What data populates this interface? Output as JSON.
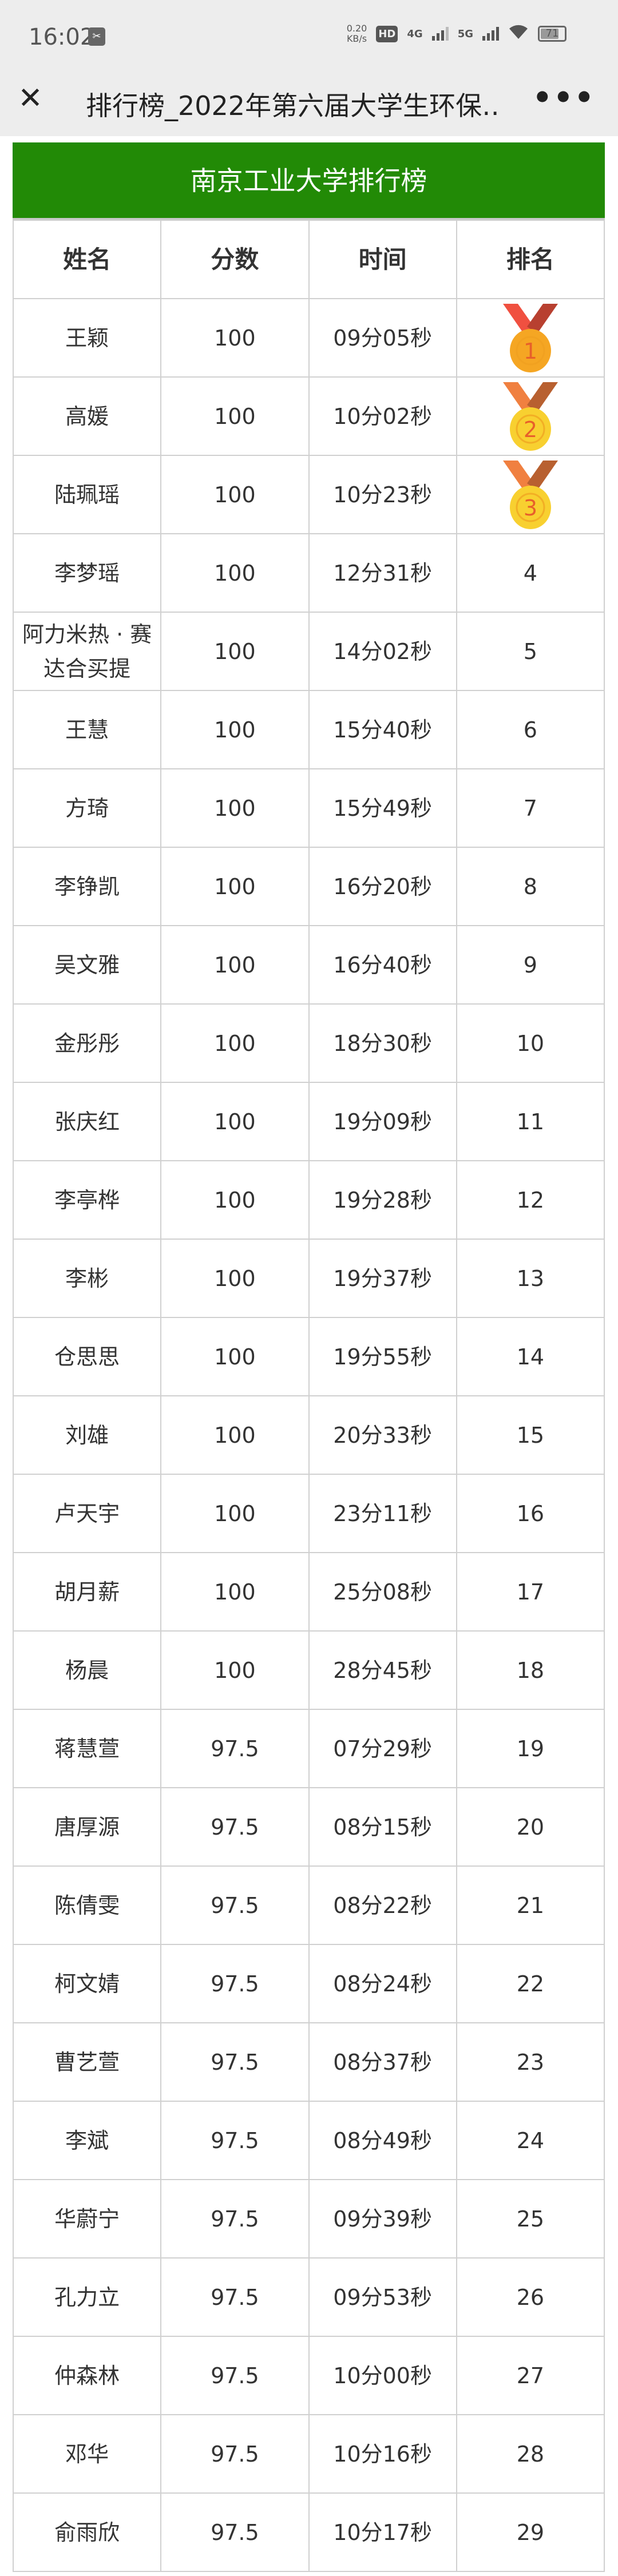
{
  "status_bar": {
    "time": "16:02",
    "speed_value": "0.20",
    "speed_unit": "KB/s",
    "hd_label": "HD",
    "sim1": "4G",
    "sim2": "5G",
    "battery": "71",
    "battery_percent": 71
  },
  "header": {
    "close_icon": "close-icon",
    "title": "排行榜_2022年第六届大学生环保…",
    "more_icon": "more-icon"
  },
  "board": {
    "title": "南京工业大学排行榜",
    "accent_color": "#228a06",
    "columns": [
      "姓名",
      "分数",
      "时间",
      "排名"
    ],
    "medal_colors": {
      "1": "#f5a623",
      "2": "#f8d030",
      "3": "#f8d030"
    },
    "rows": [
      {
        "name": "王颖",
        "score": "100",
        "time": "09分05秒",
        "rank": "1",
        "medal": true
      },
      {
        "name": "高媛",
        "score": "100",
        "time": "10分02秒",
        "rank": "2",
        "medal": true
      },
      {
        "name": "陆珮瑶",
        "score": "100",
        "time": "10分23秒",
        "rank": "3",
        "medal": true
      },
      {
        "name": "李梦瑶",
        "score": "100",
        "time": "12分31秒",
        "rank": "4"
      },
      {
        "name": "阿力米热 · 赛达合买提",
        "score": "100",
        "time": "14分02秒",
        "rank": "5"
      },
      {
        "name": "王慧",
        "score": "100",
        "time": "15分40秒",
        "rank": "6"
      },
      {
        "name": "方琦",
        "score": "100",
        "time": "15分49秒",
        "rank": "7"
      },
      {
        "name": "李铮凯",
        "score": "100",
        "time": "16分20秒",
        "rank": "8"
      },
      {
        "name": "吴文雅",
        "score": "100",
        "time": "16分40秒",
        "rank": "9"
      },
      {
        "name": "金彤彤",
        "score": "100",
        "time": "18分30秒",
        "rank": "10"
      },
      {
        "name": "张庆红",
        "score": "100",
        "time": "19分09秒",
        "rank": "11"
      },
      {
        "name": "李亭桦",
        "score": "100",
        "time": "19分28秒",
        "rank": "12"
      },
      {
        "name": "李彬",
        "score": "100",
        "time": "19分37秒",
        "rank": "13"
      },
      {
        "name": "仓思思",
        "score": "100",
        "time": "19分55秒",
        "rank": "14"
      },
      {
        "name": "刘雄",
        "score": "100",
        "time": "20分33秒",
        "rank": "15"
      },
      {
        "name": "卢天宇",
        "score": "100",
        "time": "23分11秒",
        "rank": "16"
      },
      {
        "name": "胡月薪",
        "score": "100",
        "time": "25分08秒",
        "rank": "17"
      },
      {
        "name": "杨晨",
        "score": "100",
        "time": "28分45秒",
        "rank": "18"
      },
      {
        "name": "蒋慧萱",
        "score": "97.5",
        "time": "07分29秒",
        "rank": "19"
      },
      {
        "name": "唐厚源",
        "score": "97.5",
        "time": "08分15秒",
        "rank": "20"
      },
      {
        "name": "陈倩雯",
        "score": "97.5",
        "time": "08分22秒",
        "rank": "21"
      },
      {
        "name": "柯文婧",
        "score": "97.5",
        "time": "08分24秒",
        "rank": "22"
      },
      {
        "name": "曹艺萱",
        "score": "97.5",
        "time": "08分37秒",
        "rank": "23"
      },
      {
        "name": "李斌",
        "score": "97.5",
        "time": "08分49秒",
        "rank": "24"
      },
      {
        "name": "华蔚宁",
        "score": "97.5",
        "time": "09分39秒",
        "rank": "25"
      },
      {
        "name": "孔力立",
        "score": "97.5",
        "time": "09分53秒",
        "rank": "26"
      },
      {
        "name": "仲森林",
        "score": "97.5",
        "time": "10分00秒",
        "rank": "27"
      },
      {
        "name": "邓华",
        "score": "97.5",
        "time": "10分16秒",
        "rank": "28"
      },
      {
        "name": "俞雨欣",
        "score": "97.5",
        "time": "10分17秒",
        "rank": "29"
      }
    ]
  }
}
